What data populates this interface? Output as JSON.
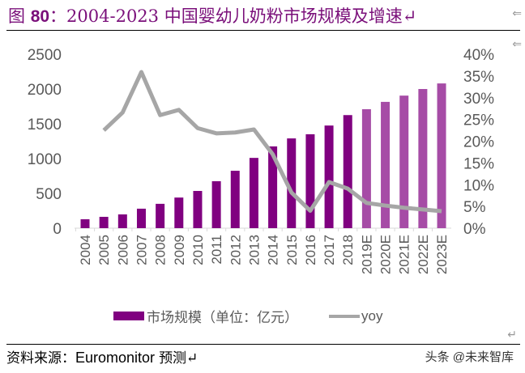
{
  "title": {
    "prefix": "图",
    "number": "80",
    "colon": "：",
    "text": "2004-2023 中国婴幼儿奶粉市场规模及增速↵"
  },
  "source": {
    "label": "资料来源：",
    "org": "Euromonitor",
    "note": "预测↵"
  },
  "watermark": "头条 @未来智库",
  "chart_data": {
    "type": "bar+line",
    "categories": [
      "2004",
      "2005",
      "2006",
      "2007",
      "2008",
      "2009",
      "2010",
      "2011",
      "2012",
      "2013",
      "2014",
      "2015",
      "2016",
      "2017",
      "2018",
      "2019E",
      "2020E",
      "2021E",
      "2022E",
      "2023E"
    ],
    "series": [
      {
        "name": "市场规模（单位：亿元）",
        "type": "bar",
        "axis": "left",
        "color": "#800080",
        "forecast_color": "#a64ca6",
        "values": [
          128,
          163,
          198,
          280,
          350,
          440,
          535,
          675,
          825,
          1010,
          1175,
          1290,
          1350,
          1475,
          1625,
          1710,
          1815,
          1905,
          2000,
          2080
        ]
      },
      {
        "name": "yoy",
        "type": "line",
        "axis": "right",
        "color": "#a6a6a6",
        "values": [
          null,
          22.5,
          26.6,
          35.9,
          26.0,
          27.2,
          23.0,
          21.8,
          22.0,
          22.7,
          17.0,
          8.2,
          4.0,
          10.6,
          9.1,
          5.8,
          5.2,
          4.7,
          4.3,
          3.9
        ]
      }
    ],
    "y_left": {
      "ylim": [
        0,
        2500
      ],
      "ticks": [
        "0",
        "500",
        "1000",
        "1500",
        "2000",
        "2500"
      ]
    },
    "y_right": {
      "ylim": [
        0,
        40
      ],
      "ticks": [
        "0%",
        "5%",
        "10%",
        "15%",
        "20%",
        "25%",
        "30%",
        "35%",
        "40%"
      ]
    },
    "grid": false,
    "legend": "bottom"
  }
}
